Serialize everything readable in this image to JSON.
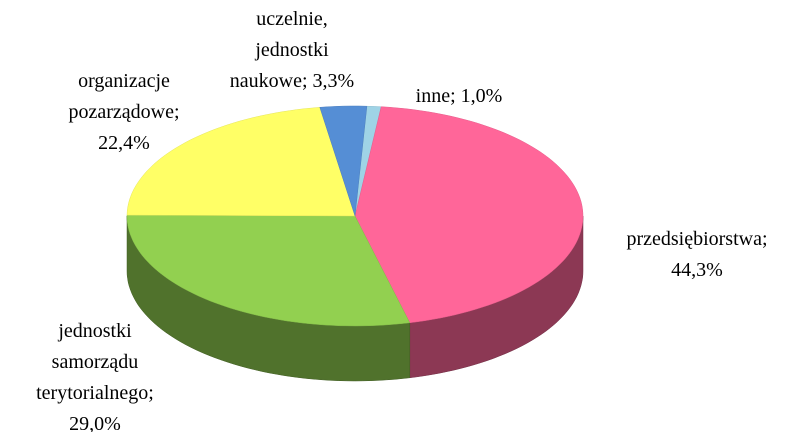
{
  "chart_data": {
    "type": "pie3d",
    "categories": [
      "inne",
      "przedsiębiorstwa",
      "jednostki samorządu terytorialnego",
      "organizacje pozarządowe",
      "uczelnie, jednostki naukowe"
    ],
    "values": [
      1.0,
      44.3,
      29.0,
      22.4,
      3.3
    ],
    "value_labels": [
      "inne; 1,0%",
      "przedsiębiorstwa;\n44,3%",
      "jednostki\nsamorządu\nterytorialnego;\n29,0%",
      "organizacje\npozarządowe;\n22,4%",
      "uczelnie,\njednostki\nnaukowe; 3,3%"
    ],
    "colors": [
      "#9fd3e6",
      "#ff6699",
      "#92d050",
      "#ffff66",
      "#558ed5"
    ]
  }
}
